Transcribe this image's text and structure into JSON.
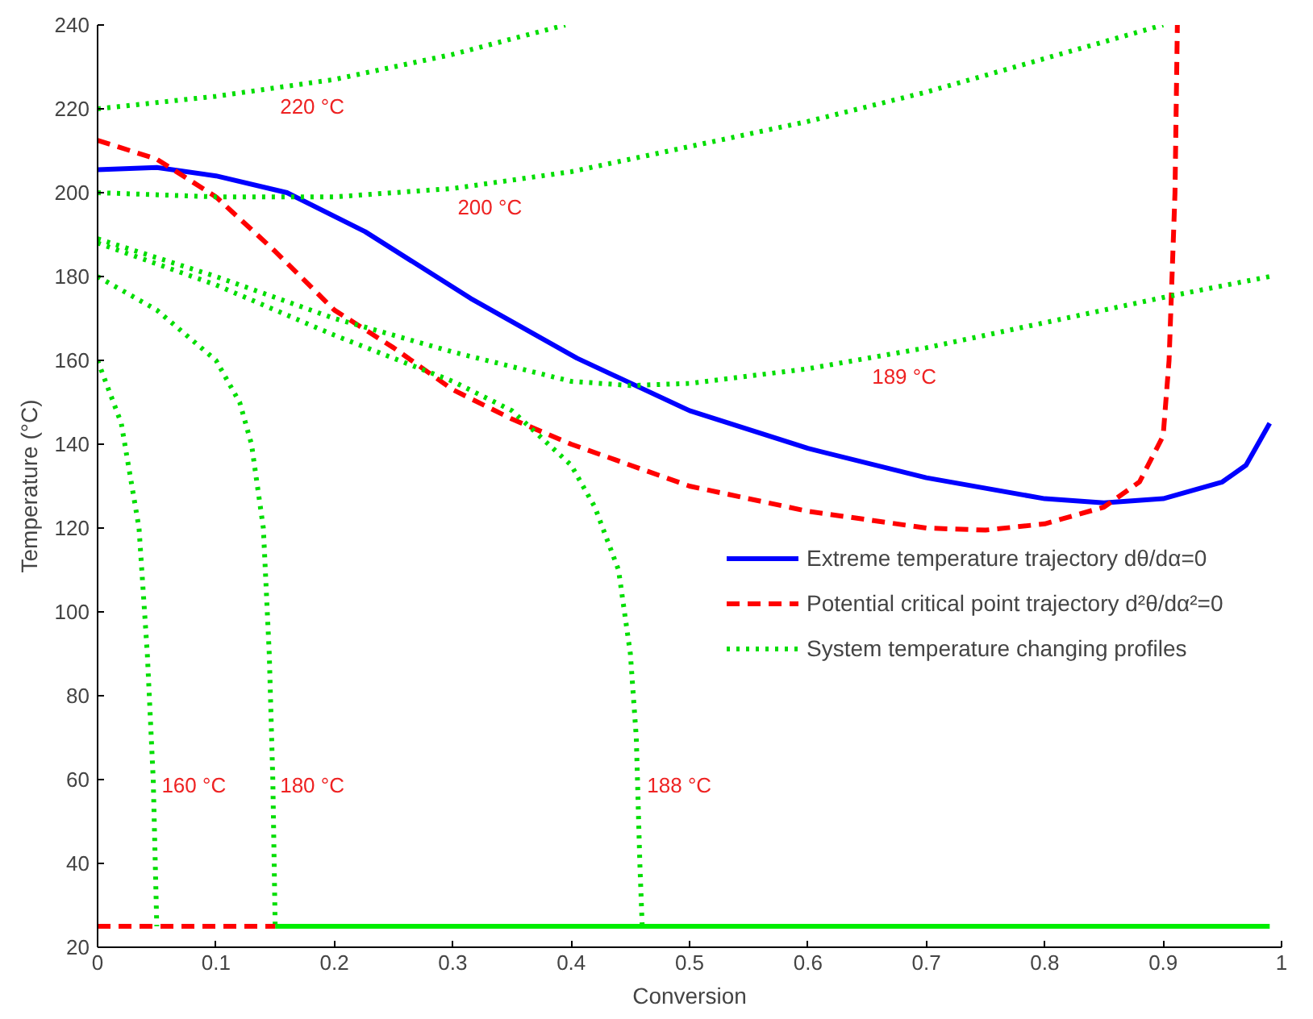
{
  "chart_data": {
    "type": "line",
    "xlabel": "Conversion",
    "ylabel": "Temperature (°C)",
    "xlim": [
      0,
      1
    ],
    "ylim": [
      20,
      240
    ],
    "xticks": [
      0,
      0.1,
      0.2,
      0.3,
      0.4,
      0.5,
      0.6,
      0.7,
      0.8,
      0.9,
      1
    ],
    "yticks": [
      20,
      40,
      60,
      80,
      100,
      120,
      140,
      160,
      180,
      200,
      220,
      240
    ],
    "grid": false,
    "legend": "right",
    "marker": "none",
    "series": [
      {
        "name": "Extreme temperature trajectory dθ/dα=0",
        "color": "#0000ff",
        "line_style": "solid",
        "x": [
          0,
          0.05,
          0.1,
          0.16,
          0.226,
          0.315,
          0.405,
          0.5,
          0.6,
          0.7,
          0.8,
          0.85,
          0.9,
          0.95,
          0.97,
          0.99
        ],
        "values": [
          205.5,
          206,
          204,
          200,
          190.7,
          174.8,
          160.5,
          148,
          139,
          132,
          127,
          126,
          127,
          131,
          135,
          145
        ]
      },
      {
        "name": "Potential critical point trajectory d²θ/dα²=0",
        "color": "#ff0000",
        "line_style": "dashed",
        "x": [
          0,
          0.05,
          0.1,
          0.15,
          0.2,
          0.25,
          0.3,
          0.35,
          0.4,
          0.5,
          0.6,
          0.7,
          0.75,
          0.8,
          0.85,
          0.88,
          0.9,
          0.905,
          0.91,
          0.912
        ],
        "values": [
          212.5,
          208,
          199,
          186,
          172,
          163,
          153,
          146,
          140,
          130,
          124,
          120,
          119.5,
          121,
          125,
          131,
          142,
          160,
          200,
          240
        ]
      },
      {
        "name": "System temperature changing profiles",
        "color": "#00dd00",
        "line_style": "dotted",
        "x": [
          0,
          0.1,
          0.2,
          0.3,
          0.395
        ],
        "values": [
          220,
          223,
          227,
          233,
          240
        ]
      },
      {
        "color": "#00dd00",
        "line_style": "dotted",
        "x": [
          0,
          0.1,
          0.2,
          0.3,
          0.4,
          0.5,
          0.6,
          0.7,
          0.8,
          0.9
        ],
        "values": [
          200,
          199,
          199,
          201,
          205,
          211,
          217,
          224,
          232,
          240
        ]
      },
      {
        "color": "#00dd00",
        "line_style": "dotted",
        "x": [
          0,
          0.1,
          0.2,
          0.3,
          0.4,
          0.45,
          0.5,
          0.6,
          0.7,
          0.8,
          0.9,
          0.99
        ],
        "values": [
          189,
          180,
          170,
          162,
          155,
          154,
          154.5,
          158,
          163,
          169,
          175,
          180
        ]
      },
      {
        "color": "#00dd00",
        "line_style": "dotted",
        "x": [
          0,
          0.1,
          0.2,
          0.3,
          0.35,
          0.4,
          0.42,
          0.44,
          0.45,
          0.455,
          0.458,
          0.46
        ],
        "values": [
          188,
          178,
          166,
          155,
          148,
          135,
          125,
          110,
          90,
          70,
          40,
          25
        ]
      },
      {
        "color": "#00dd00",
        "line_style": "dotted",
        "x": [
          0,
          0.05,
          0.1,
          0.12,
          0.13,
          0.14,
          0.145,
          0.148,
          0.15
        ],
        "values": [
          180,
          172,
          160,
          150,
          140,
          120,
          90,
          60,
          25
        ]
      },
      {
        "color": "#00dd00",
        "line_style": "dotted",
        "x": [
          0,
          0.02,
          0.035,
          0.042,
          0.047,
          0.05
        ],
        "values": [
          160,
          145,
          120,
          90,
          60,
          25
        ]
      },
      {
        "color": "#00ee00",
        "line_style": "solid",
        "x": [
          0.15,
          0.99
        ],
        "values": [
          25,
          25
        ]
      },
      {
        "color": "#ff0000",
        "line_style": "dashed",
        "x": [
          0,
          0.15
        ],
        "values": [
          25,
          25
        ]
      }
    ],
    "annotations": [
      {
        "text": "220 °C",
        "x": 0.15,
        "y": 225
      },
      {
        "text": "200 °C",
        "x": 0.3,
        "y": 201
      },
      {
        "text": "189 °C",
        "x": 0.65,
        "y": 160.5
      },
      {
        "text": "160 °C",
        "x": 0.05,
        "y": 63
      },
      {
        "text": "180 °C",
        "x": 0.15,
        "y": 63
      },
      {
        "text": "188 °C",
        "x": 0.46,
        "y": 63
      }
    ]
  }
}
